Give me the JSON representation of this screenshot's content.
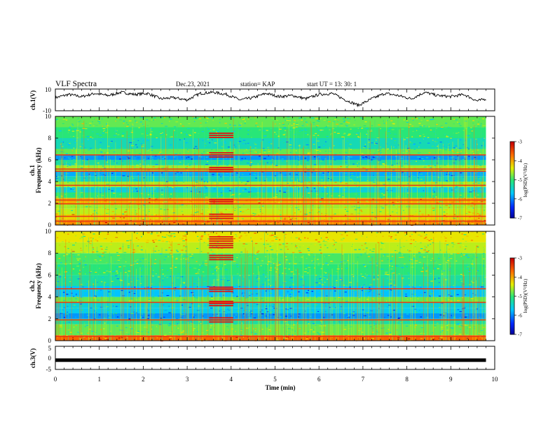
{
  "header": {
    "title": "VLF Spectra",
    "date": "Dec.23, 2021",
    "station": "station= KAP",
    "start": "start  UT =   13: 30: 1"
  },
  "chart_data": [
    {
      "type": "line",
      "panel": "ch1-waveform",
      "ylabel": "ch.1(V)",
      "ylim": [
        -10,
        10
      ],
      "y_ticks": [
        "10",
        "-10"
      ],
      "xlim": [
        0,
        10
      ],
      "x_extent_min": 9.8,
      "series": [
        {
          "x": [
            0,
            0.3,
            0.6,
            0.9,
            1.2,
            1.5,
            1.8,
            2.1,
            2.4,
            2.7,
            3.0,
            3.3,
            3.6,
            3.9,
            4.2,
            4.5,
            4.8,
            5.1,
            5.4,
            5.7,
            6.0,
            6.3,
            6.6,
            6.9,
            7.2,
            7.5,
            7.8,
            8.1,
            8.4,
            8.7,
            9.0,
            9.3,
            9.6,
            9.8
          ],
          "values": [
            2,
            5,
            3,
            6,
            4,
            7,
            5,
            6,
            1,
            2,
            0,
            6,
            7,
            5,
            0,
            2,
            6,
            3,
            4,
            1,
            5,
            6,
            0,
            -5,
            1,
            6,
            4,
            1,
            7,
            4,
            3,
            5,
            -1,
            1
          ]
        }
      ]
    },
    {
      "type": "heatmap",
      "panel": "ch1-spectrogram",
      "ylabel": "ch.1 Frequency (kHz)",
      "ylim": [
        0,
        10
      ],
      "y_ticks": [
        "0",
        "2",
        "4",
        "6",
        "8",
        "10"
      ],
      "xlim": [
        0,
        10
      ],
      "time_extent_min": 9.8,
      "colorbar": {
        "label": "log(PSD)(V²/Hz)",
        "range": [
          -7,
          -3
        ],
        "ticks": [
          "-3",
          "-4",
          "-5",
          "-6",
          "-7"
        ]
      },
      "band_levels": [
        {
          "f": [
            0.0,
            0.5
          ],
          "level": -3.8
        },
        {
          "f": [
            0.5,
            1.0
          ],
          "level": -4.2
        },
        {
          "f": [
            1.0,
            1.5
          ],
          "level": -4.5
        },
        {
          "f": [
            1.5,
            2.0
          ],
          "level": -4.6
        },
        {
          "f": [
            2.0,
            2.5
          ],
          "level": -4.0
        },
        {
          "f": [
            2.5,
            3.0
          ],
          "level": -5.0
        },
        {
          "f": [
            3.0,
            3.5
          ],
          "level": -5.5
        },
        {
          "f": [
            3.5,
            4.0
          ],
          "level": -4.6
        },
        {
          "f": [
            4.0,
            4.5
          ],
          "level": -5.4
        },
        {
          "f": [
            4.5,
            5.0
          ],
          "level": -5.8
        },
        {
          "f": [
            5.0,
            5.5
          ],
          "level": -4.6
        },
        {
          "f": [
            5.5,
            6.0
          ],
          "level": -5.2
        },
        {
          "f": [
            6.0,
            6.5
          ],
          "level": -5.9
        },
        {
          "f": [
            6.5,
            7.0
          ],
          "level": -4.8
        },
        {
          "f": [
            7.0,
            8.0
          ],
          "level": -5.3
        },
        {
          "f": [
            8.0,
            9.0
          ],
          "level": -5.0
        },
        {
          "f": [
            9.0,
            10.0
          ],
          "level": -4.8
        }
      ],
      "lines_khz": [
        0.35,
        0.8,
        1.95,
        2.3,
        3.65,
        4.95,
        5.15,
        6.45
      ],
      "burst_time_min": [
        3.5,
        4.05
      ],
      "burst_lines_khz": [
        0.8,
        2.15,
        5.1,
        6.45,
        8.25
      ]
    },
    {
      "type": "heatmap",
      "panel": "ch2-spectrogram",
      "ylabel": "ch.2 Frequency (kHz)",
      "ylim": [
        0,
        10
      ],
      "y_ticks": [
        "0",
        "2",
        "4",
        "6",
        "8",
        "10"
      ],
      "xlim": [
        0,
        10
      ],
      "time_extent_min": 9.8,
      "colorbar": {
        "label": "log(PSD)(V²/Hz)",
        "range": [
          -7,
          -3
        ],
        "ticks": [
          "-3",
          "-4",
          "-5",
          "-6",
          "-7"
        ]
      },
      "band_levels": [
        {
          "f": [
            0.0,
            0.5
          ],
          "level": -3.6
        },
        {
          "f": [
            0.5,
            1.5
          ],
          "level": -4.8
        },
        {
          "f": [
            1.5,
            2.0
          ],
          "level": -5.2
        },
        {
          "f": [
            2.0,
            2.5
          ],
          "level": -5.9
        },
        {
          "f": [
            2.5,
            3.0
          ],
          "level": -5.6
        },
        {
          "f": [
            3.0,
            3.5
          ],
          "level": -5.5
        },
        {
          "f": [
            3.5,
            4.0
          ],
          "level": -4.8
        },
        {
          "f": [
            4.0,
            5.0
          ],
          "level": -5.7
        },
        {
          "f": [
            5.0,
            6.0
          ],
          "level": -5.2
        },
        {
          "f": [
            6.0,
            7.0
          ],
          "level": -5.0
        },
        {
          "f": [
            7.0,
            8.0
          ],
          "level": -4.9
        },
        {
          "f": [
            8.0,
            9.0
          ],
          "level": -4.5
        },
        {
          "f": [
            9.0,
            10.0
          ],
          "level": -4.3
        }
      ],
      "lines_khz": [
        0.4,
        1.9,
        3.5,
        4.75
      ],
      "burst_time_min": [
        3.5,
        4.05
      ],
      "burst_lines_khz": [
        1.9,
        3.4,
        4.7,
        7.6,
        8.7,
        9.3
      ]
    },
    {
      "type": "line",
      "panel": "ch3-waveform",
      "ylabel": "ch.3(V)",
      "ylim": [
        -5,
        5
      ],
      "y_ticks": [
        "5",
        "0",
        "-5"
      ],
      "xlim": [
        0,
        10
      ],
      "xlabel": "Time (min)",
      "x_ticks": [
        "0",
        "1",
        "2",
        "3",
        "4",
        "5",
        "6",
        "7",
        "8",
        "9",
        "10"
      ],
      "series": [
        {
          "x": [
            0,
            9.8
          ],
          "values": [
            -1,
            -1
          ]
        }
      ]
    }
  ]
}
